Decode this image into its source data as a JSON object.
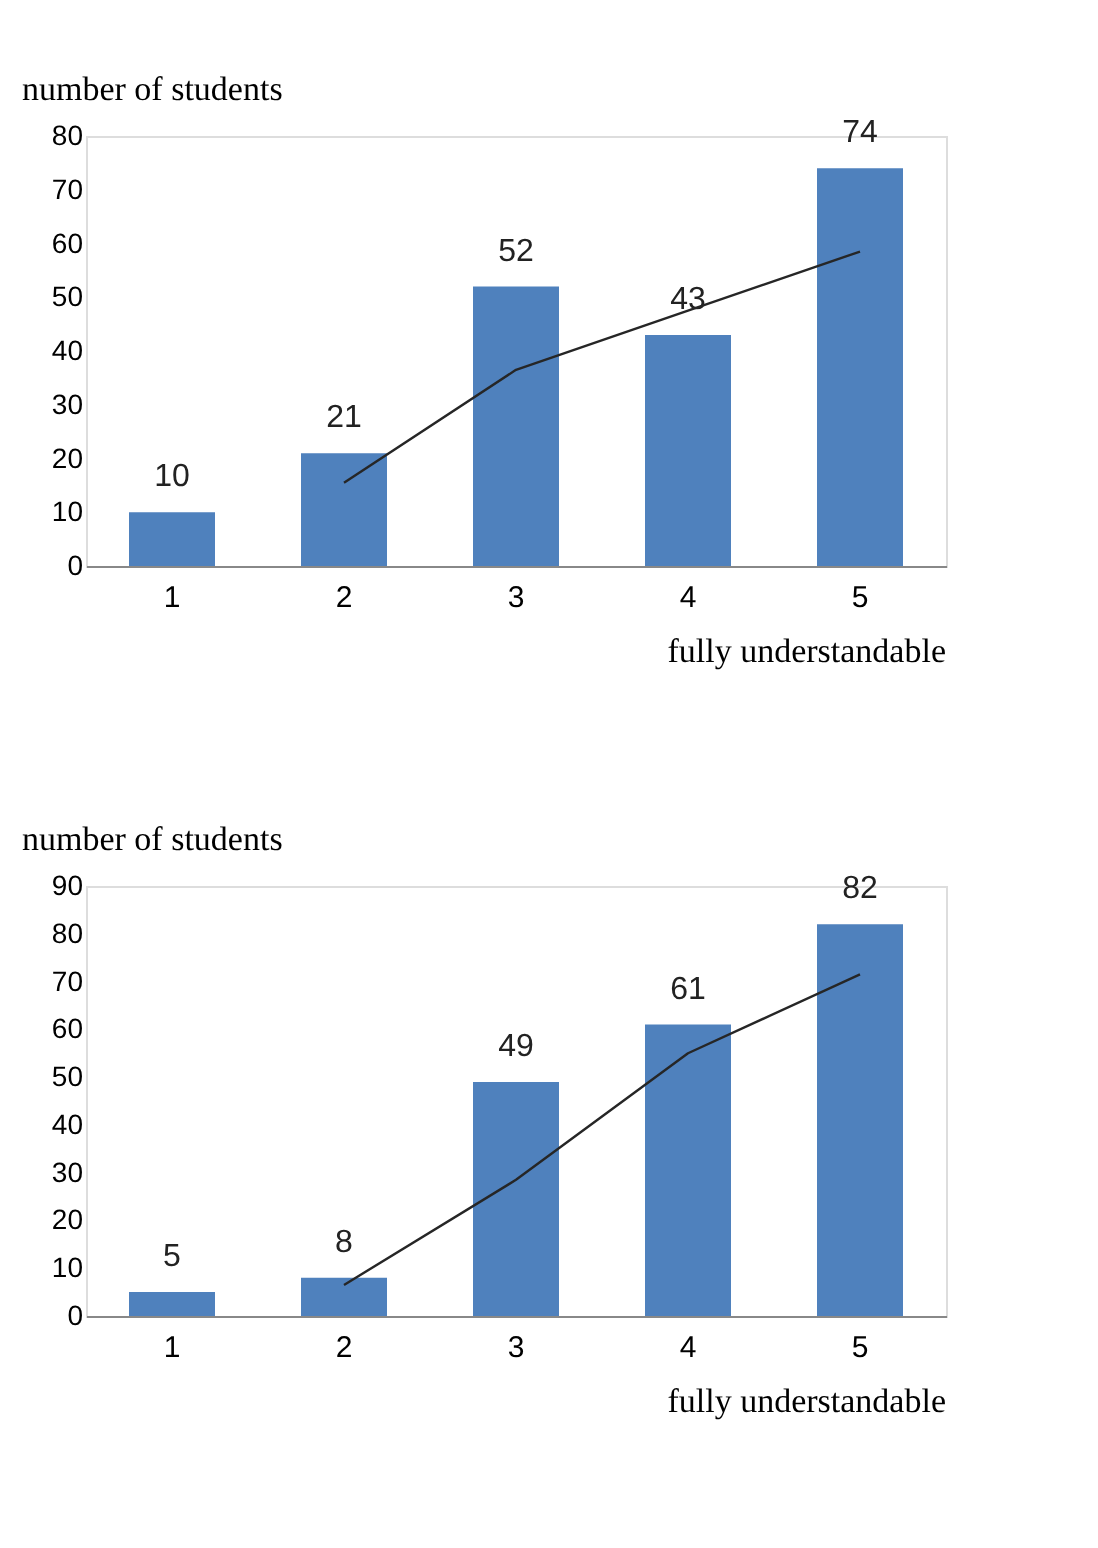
{
  "chart_data": [
    {
      "type": "bar",
      "ylabel": "number of students",
      "xlabel": "fully understandable",
      "categories": [
        "1",
        "2",
        "3",
        "4",
        "5"
      ],
      "series": [
        {
          "color": "#4f81bd",
          "values": [
            10,
            21,
            52,
            43,
            74
          ],
          "value_labels": [
            "10",
            "21",
            "52",
            "43",
            "74"
          ]
        },
        {
          "type": "line",
          "color": "#262626",
          "values": [
            null,
            15.5,
            36.5,
            47.5,
            58.5
          ]
        }
      ],
      "ylim": [
        0,
        80
      ],
      "yticks": [
        0,
        10,
        20,
        30,
        40,
        50,
        60,
        70,
        80
      ],
      "grid": false,
      "legend": false
    },
    {
      "type": "bar",
      "ylabel": "number of students",
      "xlabel": "fully understandable",
      "categories": [
        "1",
        "2",
        "3",
        "4",
        "5"
      ],
      "series": [
        {
          "color": "#4f81bd",
          "values": [
            5,
            8,
            49,
            61,
            82
          ],
          "value_labels": [
            "5",
            "8",
            "49",
            "61",
            "82"
          ]
        },
        {
          "type": "line",
          "color": "#262626",
          "values": [
            null,
            6.5,
            28.5,
            55,
            71.5
          ]
        }
      ],
      "ylim": [
        0,
        90
      ],
      "yticks": [
        0,
        10,
        20,
        30,
        40,
        50,
        60,
        70,
        80,
        90
      ],
      "grid": false,
      "legend": false
    }
  ]
}
